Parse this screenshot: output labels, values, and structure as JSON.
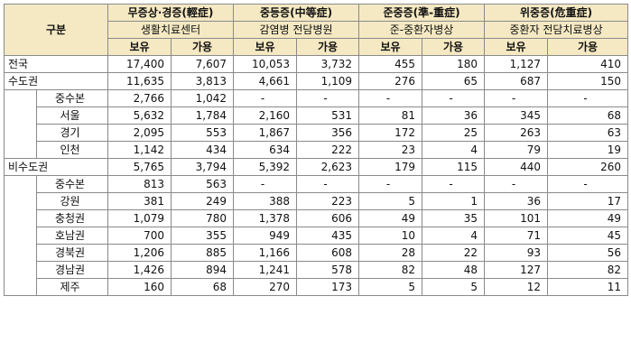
{
  "header": {
    "category": "구분",
    "groups": [
      {
        "title": "무증상·경증(輕症)",
        "facility": "생활치료센터"
      },
      {
        "title": "중등증(中等症)",
        "facility": "감염병 전담병원"
      },
      {
        "title": "준중증(準-重症)",
        "facility": "준-중환자병상"
      },
      {
        "title": "위중증(危重症)",
        "facility": "중환자 전담치료병상"
      }
    ],
    "held": "보유",
    "available": "가용"
  },
  "rows": [
    {
      "label": "전국",
      "level": 0,
      "values": [
        "17,400",
        "7,607",
        "10,053",
        "3,732",
        "455",
        "180",
        "1,127",
        "410"
      ]
    },
    {
      "label": "수도권",
      "level": 0,
      "values": [
        "11,635",
        "3,813",
        "4,661",
        "1,109",
        "276",
        "65",
        "687",
        "150"
      ]
    },
    {
      "label": "중수본",
      "level": 1,
      "values": [
        "2,766",
        "1,042",
        "-",
        "-",
        "-",
        "-",
        "-",
        "-"
      ]
    },
    {
      "label": "서울",
      "level": 1,
      "values": [
        "5,632",
        "1,784",
        "2,160",
        "531",
        "81",
        "36",
        "345",
        "68"
      ]
    },
    {
      "label": "경기",
      "level": 1,
      "values": [
        "2,095",
        "553",
        "1,867",
        "356",
        "172",
        "25",
        "263",
        "63"
      ]
    },
    {
      "label": "인천",
      "level": 1,
      "values": [
        "1,142",
        "434",
        "634",
        "222",
        "23",
        "4",
        "79",
        "19"
      ]
    },
    {
      "label": "비수도권",
      "level": 0,
      "values": [
        "5,765",
        "3,794",
        "5,392",
        "2,623",
        "179",
        "115",
        "440",
        "260"
      ]
    },
    {
      "label": "중수본",
      "level": 1,
      "values": [
        "813",
        "563",
        "-",
        "-",
        "-",
        "-",
        "-",
        "-"
      ]
    },
    {
      "label": "강원",
      "level": 1,
      "values": [
        "381",
        "249",
        "388",
        "223",
        "5",
        "1",
        "36",
        "17"
      ]
    },
    {
      "label": "충청권",
      "level": 1,
      "values": [
        "1,079",
        "780",
        "1,378",
        "606",
        "49",
        "35",
        "101",
        "49"
      ]
    },
    {
      "label": "호남권",
      "level": 1,
      "values": [
        "700",
        "355",
        "949",
        "435",
        "10",
        "4",
        "71",
        "45"
      ]
    },
    {
      "label": "경북권",
      "level": 1,
      "values": [
        "1,206",
        "885",
        "1,166",
        "608",
        "28",
        "22",
        "93",
        "56"
      ]
    },
    {
      "label": "경남권",
      "level": 1,
      "values": [
        "1,426",
        "894",
        "1,241",
        "578",
        "82",
        "48",
        "127",
        "82"
      ]
    },
    {
      "label": "제주",
      "level": 1,
      "values": [
        "160",
        "68",
        "270",
        "173",
        "5",
        "5",
        "12",
        "11"
      ]
    }
  ]
}
